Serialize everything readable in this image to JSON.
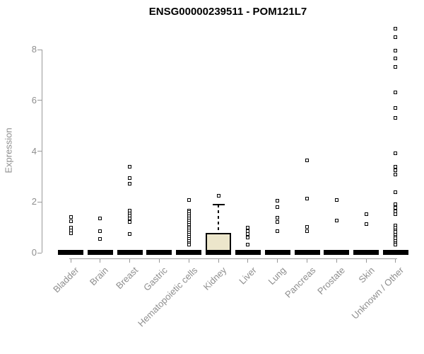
{
  "title": "ENSG00000239511 - POM121L7",
  "chart_data": {
    "type": "boxplot",
    "title": "ENSG00000239511 - POM121L7",
    "xlabel": "",
    "ylabel": "Expression",
    "ylim": [
      0,
      8.9
    ],
    "yticks": [
      0,
      2,
      4,
      6,
      8
    ],
    "grid": false,
    "legend": false,
    "colors": {
      "box_fill": "#ECE6CB",
      "box_border": "#000000",
      "point": "#000000",
      "axis": "#999999",
      "axis_text": "#8E8E8E",
      "title_text": "#000000"
    },
    "categories": [
      "Bladder",
      "Brain",
      "Breast",
      "Gastric",
      "Hematopoietic cells",
      "Kidney",
      "Liver",
      "Lung",
      "Pancreas",
      "Prostate",
      "Skin",
      "Unknown / Other"
    ],
    "boxes": [
      {
        "category": "Bladder",
        "q1": 0,
        "median": 0,
        "q3": 0,
        "whisker_low": 0,
        "whisker_high": 0,
        "outliers": [
          1.4,
          1.25,
          1.0,
          0.88,
          0.76
        ]
      },
      {
        "category": "Brain",
        "q1": 0,
        "median": 0,
        "q3": 0,
        "whisker_low": 0,
        "whisker_high": 0,
        "outliers": [
          1.34,
          0.86,
          0.53
        ]
      },
      {
        "category": "Breast",
        "q1": 0,
        "median": 0,
        "q3": 0,
        "whisker_low": 0,
        "whisker_high": 0,
        "outliers": [
          3.4,
          2.93,
          2.71,
          1.67,
          1.56,
          1.45,
          1.34,
          1.2,
          0.73
        ]
      },
      {
        "category": "Gastric",
        "q1": 0,
        "median": 0,
        "q3": 0,
        "whisker_low": 0,
        "whisker_high": 0,
        "outliers": []
      },
      {
        "category": "Hematopoietic cells",
        "q1": 0,
        "median": 0,
        "q3": 0,
        "whisker_low": 0,
        "whisker_high": 0,
        "outliers": [
          2.09,
          1.67,
          1.59,
          1.51,
          1.43,
          1.35,
          1.27,
          1.19,
          1.11,
          1.03,
          0.95,
          0.87,
          0.79,
          0.71,
          0.63,
          0.55,
          0.47,
          0.39,
          0.31
        ]
      },
      {
        "category": "Kidney",
        "q1": 0,
        "median": 0,
        "q3": 0.78,
        "whisker_low": 0,
        "whisker_high": 1.9,
        "outliers": [
          2.23
        ]
      },
      {
        "category": "Liver",
        "q1": 0,
        "median": 0,
        "q3": 0,
        "whisker_low": 0,
        "whisker_high": 0,
        "outliers": [
          1.0,
          0.86,
          0.75,
          0.61,
          0.31
        ]
      },
      {
        "category": "Lung",
        "q1": 0,
        "median": 0,
        "q3": 0,
        "whisker_low": 0,
        "whisker_high": 0,
        "outliers": [
          2.04,
          1.81,
          1.39,
          1.2,
          0.86
        ]
      },
      {
        "category": "Pancreas",
        "q1": 0,
        "median": 0,
        "q3": 0,
        "whisker_low": 0,
        "whisker_high": 0,
        "outliers": [
          3.63,
          2.12,
          1.03,
          0.84
        ]
      },
      {
        "category": "Prostate",
        "q1": 0,
        "median": 0,
        "q3": 0,
        "whisker_low": 0,
        "whisker_high": 0,
        "outliers": [
          2.09,
          1.28
        ]
      },
      {
        "category": "Skin",
        "q1": 0,
        "median": 0,
        "q3": 0,
        "whisker_low": 0,
        "whisker_high": 0,
        "outliers": [
          1.53,
          1.12
        ]
      },
      {
        "category": "Unknown / Other",
        "q1": 0,
        "median": 0,
        "q3": 0,
        "whisker_low": 0,
        "whisker_high": 0,
        "outliers": [
          8.81,
          8.48,
          7.95,
          7.64,
          7.31,
          6.3,
          5.69,
          5.3,
          3.93,
          3.38,
          3.24,
          3.07,
          2.37,
          1.9,
          1.81,
          1.76,
          1.62,
          1.53,
          1.06,
          0.98,
          0.89,
          0.81,
          0.72,
          0.64,
          0.56,
          0.47,
          0.39,
          0.31
        ]
      }
    ]
  }
}
